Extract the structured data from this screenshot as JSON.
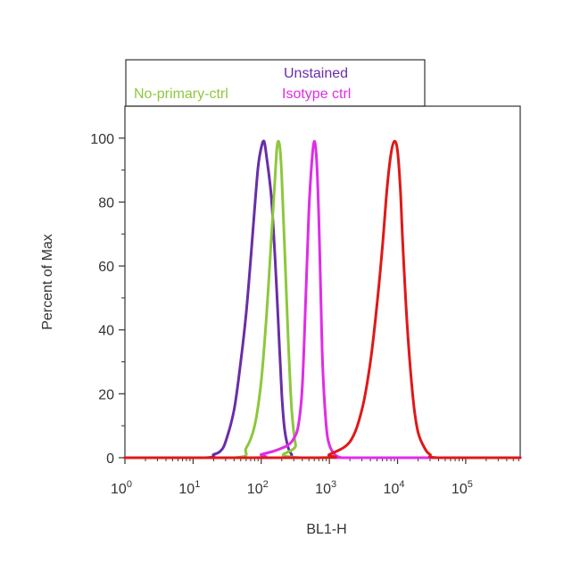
{
  "chart_data": {
    "type": "line",
    "xlabel": "BL1-H",
    "ylabel": "Percent of Max",
    "x_scale": "log",
    "xlim": [
      1,
      631000
    ],
    "ylim": [
      0,
      110
    ],
    "grid": false,
    "legend_placement": "top",
    "x_ticks": [
      {
        "value": 1,
        "base": "10",
        "exp": "0"
      },
      {
        "value": 10,
        "base": "10",
        "exp": "1"
      },
      {
        "value": 100,
        "base": "10",
        "exp": "2"
      },
      {
        "value": 1000,
        "base": "10",
        "exp": "3"
      },
      {
        "value": 10000,
        "base": "10",
        "exp": "4"
      },
      {
        "value": 100000,
        "base": "10",
        "exp": "5"
      }
    ],
    "y_ticks": [
      {
        "value": 0,
        "label": "0"
      },
      {
        "value": 20,
        "label": "20"
      },
      {
        "value": 40,
        "label": "40"
      },
      {
        "value": 60,
        "label": "60"
      },
      {
        "value": 80,
        "label": "80"
      },
      {
        "value": 100,
        "label": "100"
      }
    ],
    "series": [
      {
        "name": "Unstained",
        "color": "#6a2da8",
        "x": [
          1,
          15,
          20,
          25,
          30,
          40,
          50,
          60,
          70,
          80,
          90,
          100,
          110,
          120,
          140,
          160,
          180,
          200,
          220,
          250,
          280,
          300,
          1000,
          631000
        ],
        "y": [
          0,
          0,
          1,
          2,
          5,
          15,
          30,
          45,
          62,
          78,
          91,
          97,
          99,
          94,
          82,
          62,
          40,
          20,
          9,
          3,
          1,
          0,
          0,
          0
        ]
      },
      {
        "name": "No-primary-ctrl",
        "color": "#8cc83c",
        "x": [
          1,
          40,
          60,
          80,
          100,
          120,
          140,
          160,
          170,
          180,
          190,
          200,
          220,
          250,
          280,
          320,
          380,
          631000
        ],
        "y": [
          0,
          0,
          3,
          10,
          24,
          45,
          68,
          88,
          97,
          99,
          96,
          88,
          66,
          36,
          15,
          4,
          0,
          0
        ]
      },
      {
        "name": "Isotype ctrl",
        "color": "#e02ce8",
        "x": [
          1,
          80,
          100,
          150,
          200,
          250,
          300,
          350,
          400,
          450,
          500,
          550,
          600,
          650,
          700,
          750,
          800,
          900,
          1000,
          1200,
          1500,
          2000,
          631000
        ],
        "y": [
          0,
          0,
          1,
          2,
          3,
          4,
          6,
          10,
          22,
          50,
          77,
          92,
          99,
          93,
          75,
          50,
          28,
          10,
          4,
          1,
          0,
          0,
          0
        ]
      },
      {
        "name": "",
        "color": "#e01818",
        "x": [
          1,
          700,
          1000,
          2000,
          3000,
          4000,
          5000,
          6000,
          7000,
          8000,
          9000,
          10000,
          11000,
          12000,
          14000,
          17000,
          20000,
          25000,
          30000,
          40000,
          631000
        ],
        "y": [
          0,
          0,
          1,
          5,
          15,
          30,
          48,
          66,
          84,
          95,
          99,
          96,
          84,
          66,
          40,
          18,
          8,
          3,
          1,
          0,
          0
        ]
      }
    ]
  }
}
